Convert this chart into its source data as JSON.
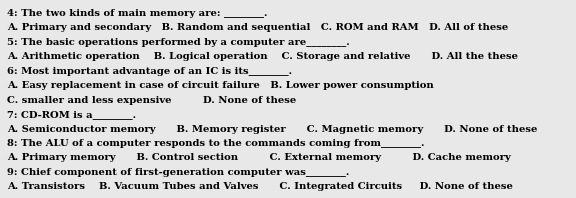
{
  "background_color": "#e8e8e8",
  "text_color": "#000000",
  "fontsize": 7.2,
  "lines": [
    "4: The two kinds of main memory are: ________.",
    "A. Primary and secondary   B. Random and sequential   C. ROM and RAM   D. All of these",
    "5: The basic operations performed by a computer are________.",
    "A. Arithmetic operation    B. Logical operation    C. Storage and relative      D. All the these",
    "6: Most important advantage of an IC is its________.",
    "A. Easy replacement in case of circuit failure   B. Lower power consumption",
    "C. smaller and less expensive         D. None of these",
    "7: CD-ROM is a________.",
    "A. Semiconductor memory      B. Memory register      C. Magnetic memory      D. None of these",
    "8: The ALU of a computer responds to the commands coming from________.",
    "A. Primary memory      B. Control section         C. External memory         D. Cache memory",
    "9: Chief component of first-generation computer was________.",
    "A. Transistors    B. Vacuum Tubes and Valves      C. Integrated Circuits     D. None of these"
  ]
}
